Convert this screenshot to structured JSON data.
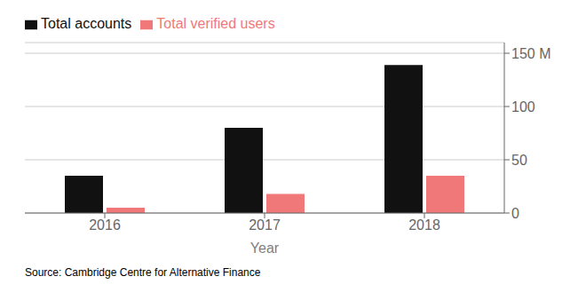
{
  "chart_data": {
    "type": "bar",
    "categories": [
      "2016",
      "2017",
      "2018"
    ],
    "series": [
      {
        "name": "Total accounts",
        "color": "#111111",
        "values": [
          35,
          80,
          139
        ]
      },
      {
        "name": "Total verified users",
        "color": "#f07878",
        "values": [
          5,
          18,
          35
        ]
      }
    ],
    "xlabel": "Year",
    "annotations": [
      "Source: Cambridge Centre for Alternative Finance"
    ],
    "ylim": [
      0,
      160
    ],
    "yticks": [
      0,
      50,
      100,
      {
        "value": 150,
        "label": "150 M"
      }
    ],
    "grid": true,
    "legend": "upper left"
  }
}
